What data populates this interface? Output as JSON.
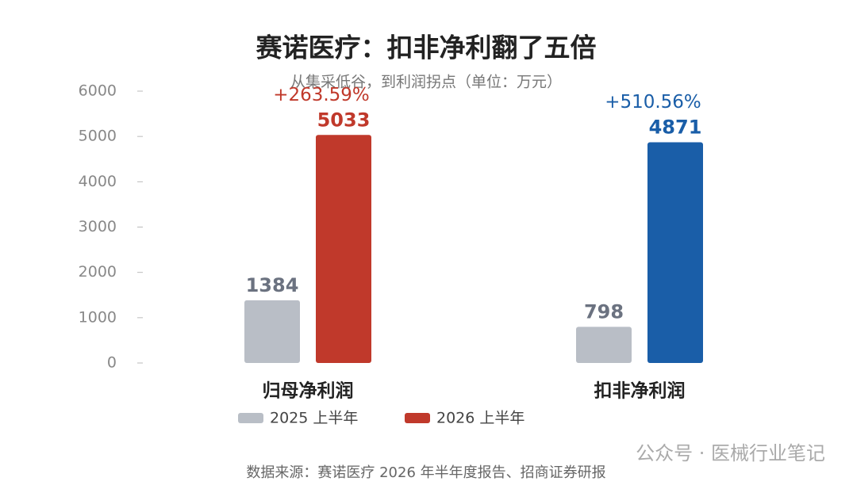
{
  "chart_data": {
    "type": "bar",
    "title": "赛诺医疗：扣非净利翻了五倍",
    "subtitle": "从集采低谷，到利润拐点（单位：万元）",
    "categories": [
      "归母净利润",
      "扣非净利润"
    ],
    "series": [
      {
        "name": "2025 上半年",
        "color": "#b9bec6",
        "values": [
          1384,
          798
        ]
      },
      {
        "name": "2026 上半年",
        "color": "#c0392b",
        "colors": [
          "#c0392b",
          "#1a5ea8"
        ],
        "values": [
          5033,
          4871
        ]
      }
    ],
    "growth_labels": [
      "+263.59%",
      "+510.56%"
    ],
    "ylim": [
      0,
      6000
    ],
    "yticks": [
      0,
      1000,
      2000,
      3000,
      4000,
      5000,
      6000
    ],
    "grid": false,
    "source": "数据来源：赛诺医疗 2026 年半年度报告、招商证券研报",
    "watermark": "公众号 · 医械行业笔记"
  }
}
